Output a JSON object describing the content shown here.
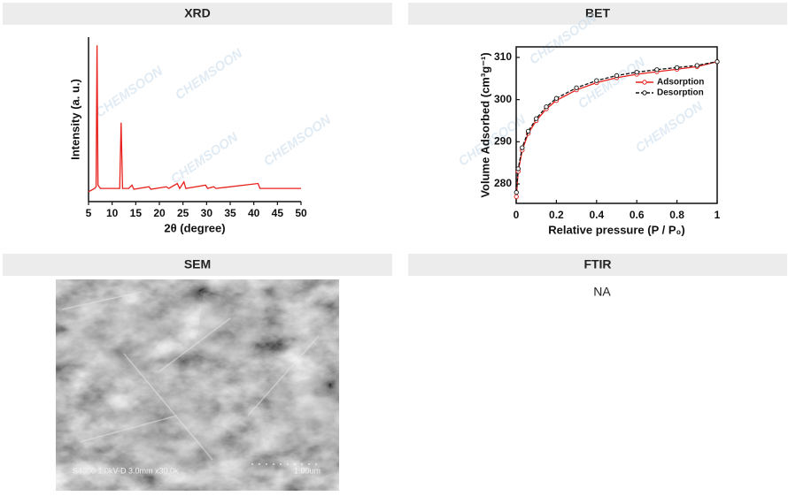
{
  "watermark": "CHEMSOON",
  "panels": [
    {
      "title": "XRD",
      "chart_data": {
        "type": "line",
        "xlabel": "2θ (degree)",
        "ylabel": "Intensity (a. u.)",
        "x": [
          5,
          6.3,
          6.6,
          6.8,
          7.0,
          7.5,
          11.6,
          11.9,
          12.2,
          13.5,
          14.2,
          14.6,
          17.8,
          18.2,
          21.5,
          22,
          23.8,
          24.3,
          25.2,
          25.6,
          29.8,
          30.2,
          31.5,
          32,
          40.9,
          41.3,
          50
        ],
        "values": [
          6,
          8,
          9,
          95,
          10,
          8,
          8,
          48,
          8,
          8,
          10,
          7.5,
          9,
          7.5,
          9,
          8,
          11,
          8,
          12,
          8,
          10,
          8,
          9,
          8,
          11,
          8,
          8
        ],
        "color": "#e8201c",
        "xlim": [
          5,
          50
        ],
        "xticks": [
          5,
          10,
          15,
          20,
          25,
          30,
          35,
          40,
          45,
          50
        ],
        "ylim": [
          0,
          100
        ],
        "frame": false
      }
    },
    {
      "title": "BET",
      "chart_data": {
        "type": "line",
        "xlabel": "Relative pressure (P / P₀)",
        "ylabel": "Volume Adsorbed (cm³g⁻¹)",
        "x": [
          0.001,
          0.01,
          0.03,
          0.06,
          0.1,
          0.15,
          0.2,
          0.3,
          0.4,
          0.5,
          0.6,
          0.7,
          0.8,
          0.9,
          1.0
        ],
        "series": [
          {
            "name": "Adsorption",
            "color": "#e8201c",
            "dash": false,
            "values": [
              277,
              283,
              288,
              292,
              295,
              297.8,
              299.8,
              302.3,
              304,
              305.2,
              306,
              306.6,
              307.2,
              307.8,
              309
            ]
          },
          {
            "name": "Desorption",
            "color": "#111111",
            "dash": true,
            "values": [
              278,
              283.6,
              288.6,
              292.5,
              295.5,
              298.3,
              300.3,
              302.8,
              304.5,
              305.7,
              306.5,
              307.1,
              307.6,
              308.1,
              309
            ]
          }
        ],
        "xlim": [
          0,
          1
        ],
        "xticks": [
          0,
          0.2,
          0.4,
          0.6,
          0.8,
          1
        ],
        "ylim": [
          275.4,
          312.5
        ],
        "yticks": [
          280,
          290,
          300,
          310
        ],
        "frame": true,
        "markers": true,
        "legend": "right"
      }
    },
    {
      "title": "SEM",
      "image": {
        "caption": "S4800 1.0kV-D 3.0mm x30.0k",
        "scale_label": "1.00um"
      }
    },
    {
      "title": "FTIR",
      "text": "NA"
    }
  ]
}
